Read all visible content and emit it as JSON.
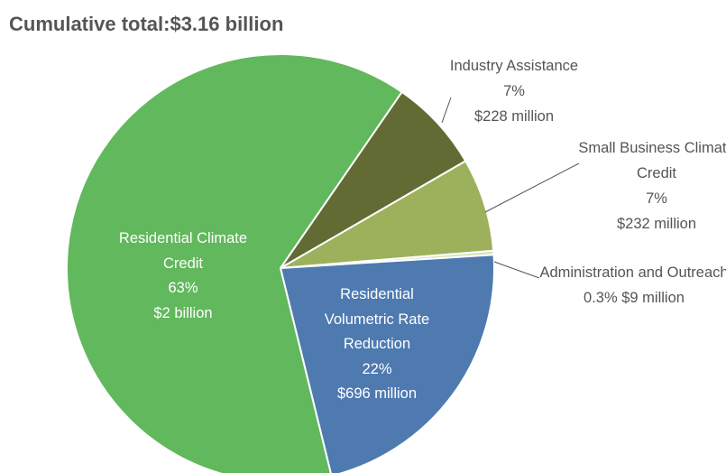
{
  "chart_data": {
    "type": "pie",
    "title": "Cumulative total:$3.16 billion",
    "categories": [
      "Industry Assistance",
      "Small Business Climate Credit",
      "Administration and Outreach",
      "Residential Volumetric Rate Reduction",
      "Residential Climate Credit"
    ],
    "values": [
      7,
      7,
      0.3,
      22,
      63
    ],
    "value_labels": [
      "7%",
      "7%",
      "0.3%",
      "22%",
      "63%"
    ],
    "amount_labels": [
      "$228 million",
      "$232 million",
      "$9 million",
      "$696 million",
      "$2 billion"
    ],
    "colors": [
      "#626b33",
      "#9db05c",
      "#d7e3b5",
      "#4e7ab0",
      "#62b85d"
    ]
  }
}
